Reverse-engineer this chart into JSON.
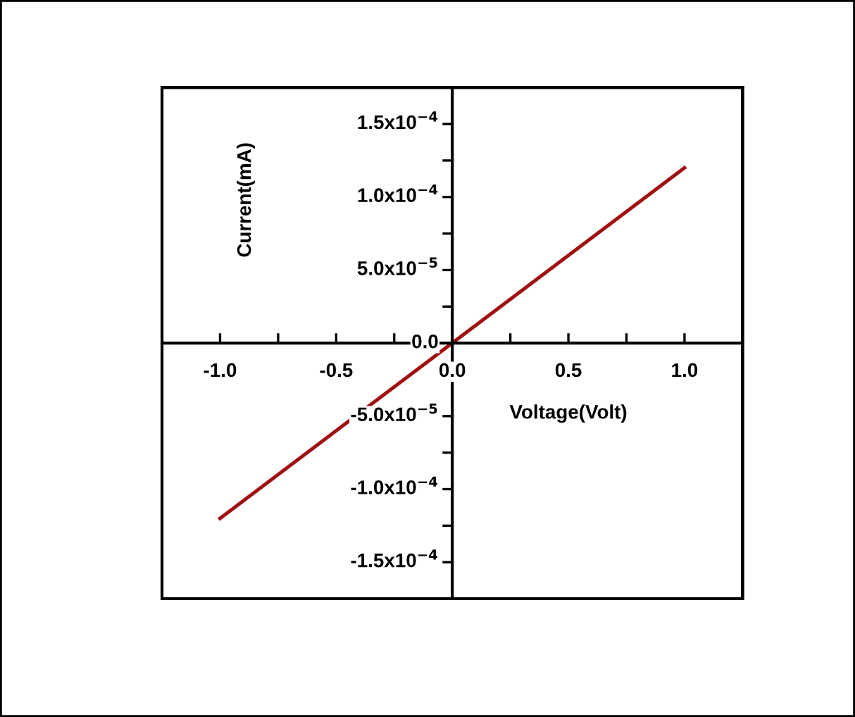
{
  "chart_data": {
    "type": "line",
    "xlabel": "Voltage(Volt)",
    "ylabel": "Current(mA)",
    "x": [
      -1.0,
      0.0,
      1.0
    ],
    "series": [
      {
        "color": "#a01010",
        "values": [
          -0.00012,
          0.0,
          0.00012
        ]
      }
    ],
    "xlim": [
      -1.25,
      1.25
    ],
    "ylim": [
      -0.000175,
      0.000175
    ],
    "xticks": [
      {
        "value": -1.0,
        "label": "-1.0"
      },
      {
        "value": -0.75,
        "label": null
      },
      {
        "value": -0.5,
        "label": "-0.5"
      },
      {
        "value": -0.25,
        "label": null
      },
      {
        "value": 0.0,
        "label": "0.0"
      },
      {
        "value": 0.25,
        "label": null
      },
      {
        "value": 0.5,
        "label": "0.5"
      },
      {
        "value": 0.75,
        "label": null
      },
      {
        "value": 1.0,
        "label": "1.0"
      }
    ],
    "yticks": [
      {
        "value": -0.00015,
        "label": "-1.5x10$^{−4}$"
      },
      {
        "value": -0.000125,
        "label": null
      },
      {
        "value": -0.0001,
        "label": "-1.0x10$^{−4}$"
      },
      {
        "value": -7.5e-05,
        "label": null
      },
      {
        "value": -5e-05,
        "label": "-5.0x10$^{−5}$"
      },
      {
        "value": -2.5e-05,
        "label": null
      },
      {
        "value": 0.0,
        "label": "0.0"
      },
      {
        "value": 2.5e-05,
        "label": null
      },
      {
        "value": 5e-05,
        "label": "5.0x10$^{−5}$"
      },
      {
        "value": 7.5e-05,
        "label": null
      },
      {
        "value": 0.0001,
        "label": "1.0x10$^{−4}$"
      },
      {
        "value": 0.000125,
        "label": null
      },
      {
        "value": 0.00015,
        "label": "1.5x10$^{−4}$"
      }
    ],
    "grid": false,
    "legend": false,
    "marker": "none",
    "line_style": "solid"
  }
}
